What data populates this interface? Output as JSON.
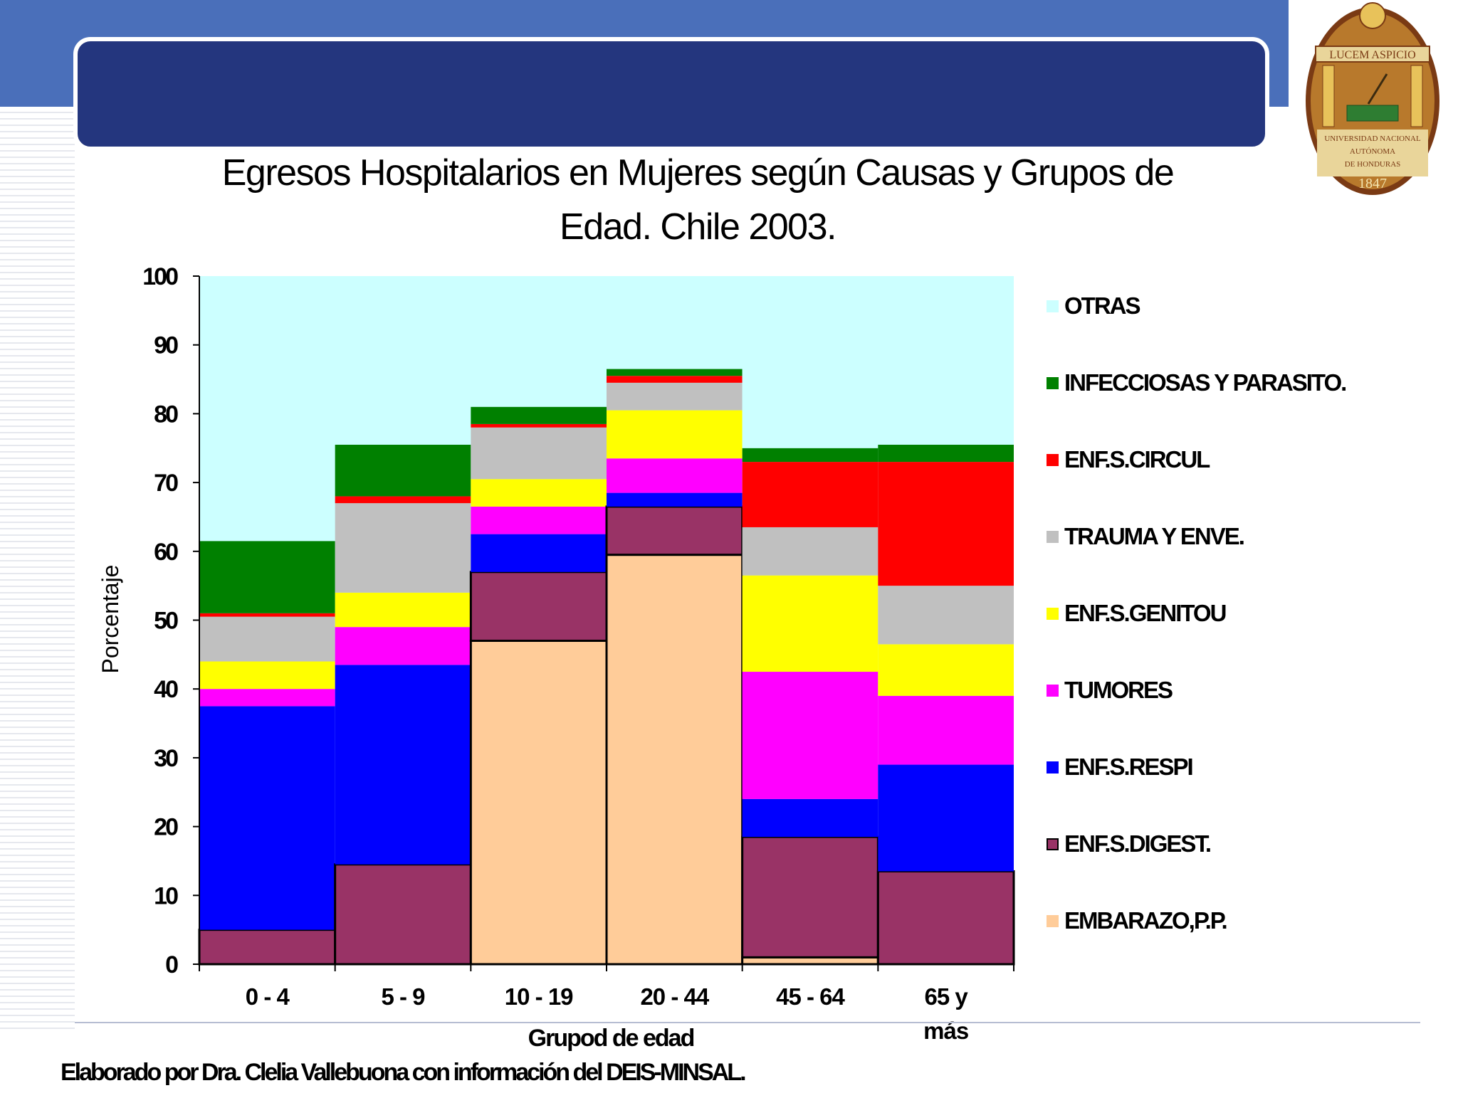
{
  "slide": {
    "title_line1": "Egresos Hospitalarios en Mujeres según Causas y Grupos de",
    "title_line2": "Edad. Chile 2003.",
    "source": "Elaborado  por Dra. Clelia Vallebuona con información del DEIS-MINSAL."
  },
  "seal": {
    "motto": "LUCEM ASPICIO",
    "name_line1": "UNIVERSIDAD NACIONAL",
    "name_line2": "AUTÓNOMA",
    "name_line3": "DE HONDURAS",
    "year": "1847"
  },
  "colors": {
    "top_band": "#4a6fba",
    "title_bar": "#24367e",
    "plot_background": "#ccffff"
  },
  "chart_data": {
    "type": "bar",
    "stacked": true,
    "title": "Egresos Hospitalarios en Mujeres según Causas y Grupos de Edad. Chile 2003.",
    "xlabel": "Grupod de edad",
    "ylabel": "Porcentaje",
    "ylim": [
      0,
      100
    ],
    "yticks": [
      "0",
      "10",
      "20",
      "30",
      "40",
      "50",
      "60",
      "70",
      "80",
      "90",
      "100"
    ],
    "categories": [
      "0 - 4",
      "5 - 9",
      "10 - 19",
      "20 - 44",
      "45 - 64",
      "65 y más"
    ],
    "category_labels": [
      [
        "0 - 4"
      ],
      [
        "5 - 9"
      ],
      [
        "10 - 19"
      ],
      [
        "20 - 44"
      ],
      [
        "45 - 64"
      ],
      [
        "65 y",
        "más"
      ]
    ],
    "series": [
      {
        "name": "EMBARAZO,P.P.",
        "color": "#ffcc99",
        "values": [
          0,
          0,
          47,
          59.5,
          1,
          0
        ]
      },
      {
        "name": "ENF.S.DIGEST.",
        "color": "#993366",
        "values": [
          5,
          14.5,
          10,
          7,
          17.5,
          13.5
        ]
      },
      {
        "name": "ENF.S.RESPI",
        "color": "#0000ff",
        "values": [
          32.5,
          29,
          5.5,
          2,
          5.5,
          15.5
        ]
      },
      {
        "name": "TUMORES",
        "color": "#ff00ff",
        "values": [
          2.5,
          5.5,
          4,
          5,
          18.5,
          10
        ]
      },
      {
        "name": "ENF.S.GENITOU",
        "color": "#ffff00",
        "values": [
          4,
          5,
          4,
          7,
          14,
          7.5
        ]
      },
      {
        "name": "TRAUMA Y ENVE.",
        "color": "#c0c0c0",
        "values": [
          6.5,
          13,
          7.5,
          4,
          7,
          8.5
        ]
      },
      {
        "name": "ENF.S.CIRCUL",
        "color": "#ff0000",
        "values": [
          0.5,
          1,
          0.5,
          1,
          9.5,
          18
        ]
      },
      {
        "name": "INFECCIOSAS Y PARASITO.",
        "color": "#008000",
        "values": [
          10.5,
          7.5,
          2.5,
          1,
          2,
          2.5
        ]
      },
      {
        "name": "OTRAS",
        "color": "#ccffff",
        "values": [
          38.5,
          24.5,
          19,
          13.5,
          25,
          24.5
        ]
      }
    ],
    "legend_position": "right",
    "grid": false
  }
}
